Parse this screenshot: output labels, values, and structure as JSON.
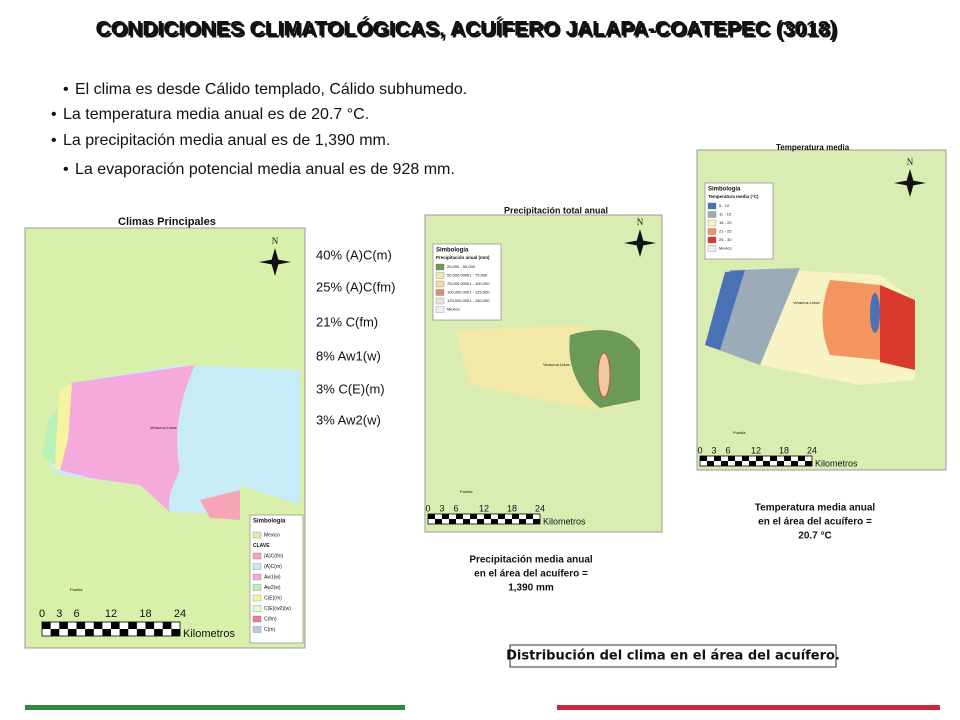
{
  "title": "CONDICIONES CLIMATOLÓGICAS, ACUÍFERO JALAPA-COATEPEC (3018)",
  "bullets": [
    "El clima es desde Cálido templado, Cálido subhumedo.",
    "La temperatura media anual es de 20.7 °C.",
    "La precipitación media anual es de 1,390 mm.",
    "La evaporación potencial media anual es de  928 mm."
  ],
  "climate_shares": [
    "40% (A)C(m)",
    "25% (A)C(fm)",
    "21% C(fm)",
    "8% Aw1(w)",
    "3% C(E)(m)",
    "3% Aw2(w)"
  ],
  "maps": [
    {
      "title": "Climas Principales",
      "north": "N",
      "places": [
        "Veracruz-Llave",
        "Puebla"
      ],
      "legend_title": "Simbología",
      "legend_items": [
        "Mexico",
        "CLAVE",
        "(A)C(fm)",
        "(A)C(m)",
        "Aw1(w)",
        "Aw2(w)",
        "C(E)(m)",
        "C(E)(w2)(w)",
        "C(fm)",
        "C(m)"
      ],
      "scale": [
        "0",
        "3",
        "6",
        "12",
        "18",
        "24"
      ],
      "scale_unit": "Kilometros"
    },
    {
      "title": "Precipitación total anual",
      "north": "N",
      "places": [
        "Veracruz-Llave",
        "Puebla"
      ],
      "legend_title": "Simbologia",
      "legend_subtitle": "Precipitación anual (mm)",
      "legend_items": [
        "25,000 - 50,000",
        "50,000.00001 - 75,000",
        "75,000.00001 - 100,000",
        "100,000.0001 - 125,000",
        "125,000.0001 - 150,000",
        "Mexico"
      ],
      "scale": [
        "0",
        "3",
        "6",
        "12",
        "18",
        "24"
      ],
      "scale_unit": "Kilometros",
      "caption": [
        "Precipitación media anual",
        "en el área del acuífero =",
        "1,390 mm"
      ]
    },
    {
      "title": "Temperatura media",
      "north": "N",
      "places": [
        "Veracruz-Llave",
        "Puebla"
      ],
      "legend_title": "Simbologia",
      "legend_subtitle": "Temperatura media (°C)",
      "legend_items": [
        "5 - 10",
        "11 - 15",
        "16 - 20",
        "21 - 25",
        "26 - 30",
        "Mexico"
      ],
      "scale": [
        "0",
        "3",
        "6",
        "12",
        "18",
        "24"
      ],
      "scale_unit": "Kilometros",
      "caption": [
        "Temperatura media anual",
        "en el área del acuífero =",
        "20.7 °C"
      ]
    }
  ],
  "footer_caption": "Distribución del clima en el área del acuífero."
}
